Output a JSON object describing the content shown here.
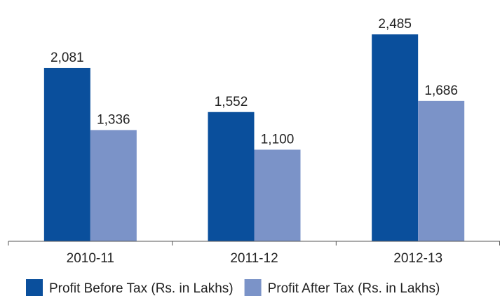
{
  "chart_data": {
    "type": "bar",
    "categories": [
      "2010-11",
      "2011-12",
      "2012-13"
    ],
    "series": [
      {
        "name": "Profit Before Tax (Rs. in Lakhs)",
        "color": "#0a4f9c",
        "values": [
          2081,
          1552,
          2485
        ],
        "value_labels": [
          "2,081",
          "1,552",
          "2,485"
        ]
      },
      {
        "name": "Profit After Tax (Rs. in Lakhs)",
        "color": "#7b93c8",
        "values": [
          1336,
          1100,
          1686
        ],
        "value_labels": [
          "1,336",
          "1,100",
          "1,686"
        ]
      }
    ],
    "legend": "bottom"
  }
}
